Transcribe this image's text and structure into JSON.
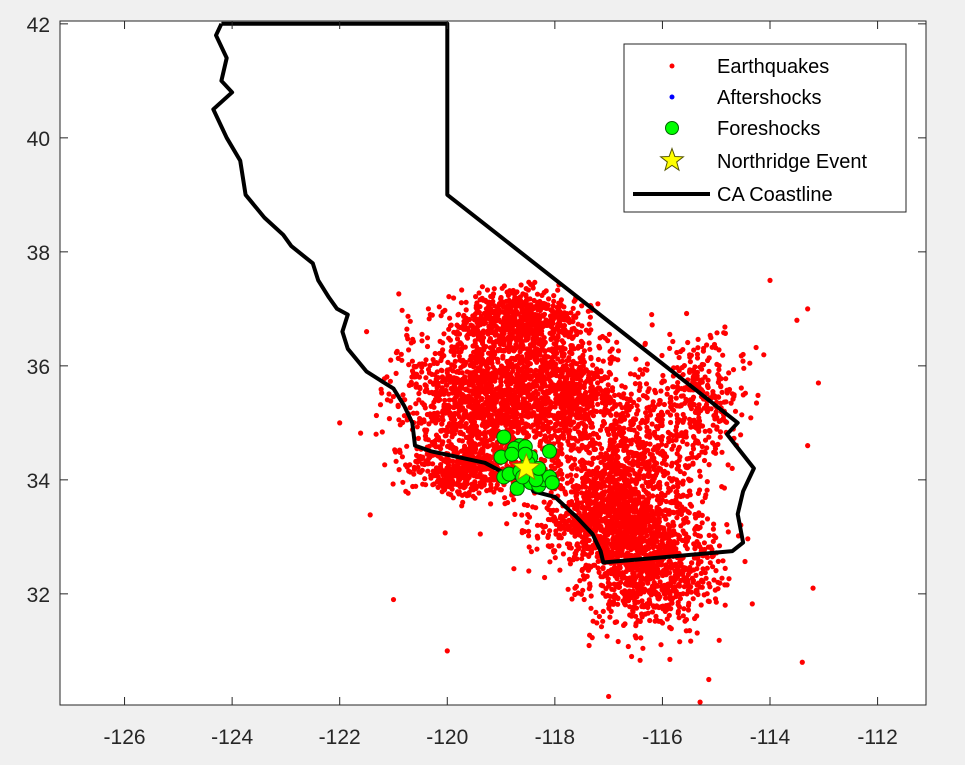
{
  "chart_data": {
    "type": "scatter",
    "title": "",
    "xlabel": "",
    "ylabel": "",
    "xlim": [
      -127.2,
      -111.1
    ],
    "ylim": [
      30.05,
      42.05
    ],
    "x_ticks": [
      -126,
      -124,
      -122,
      -120,
      -118,
      -116,
      -114,
      -112
    ],
    "y_ticks": [
      32,
      34,
      36,
      38,
      40,
      42
    ],
    "x_tick_labels": [
      "-126",
      "-124",
      "-122",
      "-120",
      "-118",
      "-116",
      "-114",
      "-112"
    ],
    "y_tick_labels": [
      "32",
      "34",
      "36",
      "38",
      "40",
      "42"
    ],
    "grid": false,
    "legend_placement": "top-right",
    "series": [
      {
        "name": "Earthquakes",
        "marker": "dot",
        "color": "#ff0000",
        "distribution": "dense cloud, approx. lon -122 to -113, lat 30.1 to 37.5",
        "sample_points": [
          [
            -121.0,
            31.9
          ],
          [
            -120.0,
            31.0
          ],
          [
            -117.0,
            30.2
          ],
          [
            -115.3,
            30.1
          ],
          [
            -114.0,
            37.5
          ],
          [
            -113.5,
            36.8
          ],
          [
            -113.3,
            37.0
          ],
          [
            -113.1,
            35.7
          ],
          [
            -113.3,
            34.6
          ],
          [
            -113.2,
            32.1
          ],
          [
            -113.4,
            30.8
          ],
          [
            -114.5,
            36.2
          ],
          [
            -116.2,
            36.9
          ],
          [
            -119.0,
            37.2
          ],
          [
            -121.5,
            36.6
          ],
          [
            -122.0,
            35.0
          ],
          [
            -118.5,
            35.8
          ],
          [
            -117.5,
            35.0
          ],
          [
            -116.5,
            34.0
          ],
          [
            -116.0,
            33.0
          ],
          [
            -116.5,
            32.0
          ],
          [
            -115.5,
            33.8
          ],
          [
            -119.0,
            34.5
          ],
          [
            -118.0,
            34.2
          ]
        ]
      },
      {
        "name": "Aftershocks",
        "marker": "dot",
        "color": "#0000ff",
        "sample_points": [
          [
            -118.55,
            34.2
          ]
        ]
      },
      {
        "name": "Foreshocks",
        "marker": "circle",
        "color": "#00ff00",
        "edge_color": "#006400",
        "points": [
          [
            -118.95,
            34.75
          ],
          [
            -118.65,
            34.6
          ],
          [
            -118.75,
            34.55
          ],
          [
            -118.55,
            34.58
          ],
          [
            -118.45,
            34.4
          ],
          [
            -118.1,
            34.5
          ],
          [
            -119.0,
            34.4
          ],
          [
            -118.8,
            34.45
          ],
          [
            -118.95,
            34.05
          ],
          [
            -118.85,
            34.1
          ],
          [
            -118.65,
            34.15
          ],
          [
            -118.5,
            34.3
          ],
          [
            -118.7,
            33.85
          ],
          [
            -118.45,
            33.95
          ],
          [
            -118.3,
            33.9
          ],
          [
            -118.2,
            34.0
          ],
          [
            -118.1,
            34.05
          ],
          [
            -118.05,
            33.95
          ],
          [
            -118.35,
            34.0
          ],
          [
            -118.6,
            34.05
          ],
          [
            -118.55,
            34.45
          ],
          [
            -118.3,
            34.2
          ]
        ]
      },
      {
        "name": "Northridge Event",
        "marker": "star",
        "color": "#ffff00",
        "edge_color": "#8a8a00",
        "points": [
          [
            -118.53,
            34.21
          ]
        ]
      },
      {
        "name": "CA Coastline",
        "marker": "line",
        "color": "#000000",
        "path": [
          [
            -124.2,
            42.0
          ],
          [
            -124.3,
            41.8
          ],
          [
            -124.1,
            41.4
          ],
          [
            -124.2,
            41.0
          ],
          [
            -124.0,
            40.8
          ],
          [
            -124.35,
            40.5
          ],
          [
            -124.1,
            40.0
          ],
          [
            -123.85,
            39.6
          ],
          [
            -123.75,
            39.0
          ],
          [
            -123.4,
            38.6
          ],
          [
            -123.05,
            38.3
          ],
          [
            -122.9,
            38.1
          ],
          [
            -122.5,
            37.8
          ],
          [
            -122.4,
            37.5
          ],
          [
            -122.2,
            37.2
          ],
          [
            -122.05,
            37.0
          ],
          [
            -121.85,
            36.9
          ],
          [
            -121.95,
            36.6
          ],
          [
            -121.85,
            36.3
          ],
          [
            -121.5,
            35.9
          ],
          [
            -121.0,
            35.6
          ],
          [
            -120.8,
            35.3
          ],
          [
            -120.65,
            35.0
          ],
          [
            -120.6,
            34.6
          ],
          [
            -120.3,
            34.5
          ],
          [
            -119.8,
            34.4
          ],
          [
            -119.3,
            34.3
          ],
          [
            -118.8,
            34.05
          ],
          [
            -118.5,
            34.0
          ],
          [
            -118.4,
            33.8
          ],
          [
            -118.0,
            33.7
          ],
          [
            -117.6,
            33.35
          ],
          [
            -117.3,
            33.05
          ],
          [
            -117.15,
            32.75
          ],
          [
            -117.1,
            32.55
          ],
          [
            -114.7,
            32.75
          ],
          [
            -114.5,
            32.9
          ],
          [
            -114.6,
            33.4
          ],
          [
            -114.5,
            33.8
          ],
          [
            -114.3,
            34.2
          ],
          [
            -114.8,
            34.8
          ],
          [
            -114.6,
            35.0
          ],
          [
            -120.0,
            39.0
          ],
          [
            -120.0,
            42.0
          ],
          [
            -124.2,
            42.0
          ]
        ]
      }
    ]
  },
  "legend": {
    "items": [
      {
        "label": "Earthquakes"
      },
      {
        "label": "Aftershocks"
      },
      {
        "label": "Foreshocks"
      },
      {
        "label": "Northridge Event"
      },
      {
        "label": "CA Coastline"
      }
    ]
  }
}
